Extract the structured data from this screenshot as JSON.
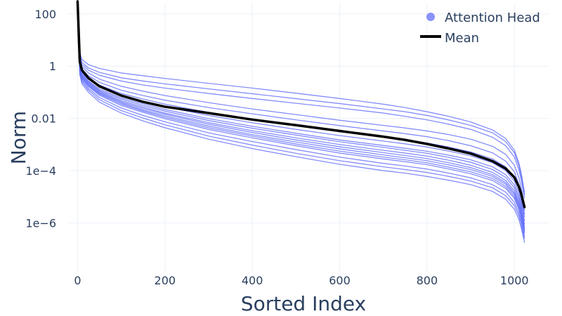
{
  "chart_data": {
    "type": "line",
    "title": "",
    "xlabel": "Sorted Index",
    "ylabel": "Norm",
    "xlim": [
      -20,
      1080
    ],
    "ylim_log10": [
      -7.9,
      2.4
    ],
    "y_scale": "log",
    "x_ticks": [
      {
        "value": 0,
        "label": "0"
      },
      {
        "value": 200,
        "label": "200"
      },
      {
        "value": 400,
        "label": "400"
      },
      {
        "value": 600,
        "label": "600"
      },
      {
        "value": 800,
        "label": "800"
      },
      {
        "value": 1000,
        "label": "1000"
      }
    ],
    "y_ticks": [
      {
        "value": 100,
        "label": "100"
      },
      {
        "value": 1,
        "label": "1"
      },
      {
        "value": 0.01,
        "label": "0.01"
      },
      {
        "value": 0.0001,
        "label": "1e−4"
      },
      {
        "value": 1e-06,
        "label": "1e−6"
      }
    ],
    "grid": true,
    "legend_position": "top-right",
    "legend": [
      {
        "name": "Attention Head",
        "symbol": "marker",
        "color": "#636efa"
      },
      {
        "name": "Mean",
        "symbol": "line",
        "color": "#000000"
      }
    ],
    "x": [
      0,
      5,
      10,
      25,
      50,
      100,
      150,
      200,
      300,
      400,
      500,
      600,
      700,
      750,
      800,
      850,
      900,
      950,
      980,
      1000,
      1010,
      1015,
      1020,
      1023
    ],
    "series": [
      {
        "name": "Mean",
        "color": "#000000",
        "values": [
          300,
          1.5,
          0.7,
          0.35,
          0.17,
          0.075,
          0.043,
          0.028,
          0.016,
          0.009,
          0.0055,
          0.0033,
          0.002,
          0.0015,
          0.00105,
          0.0007,
          0.00045,
          0.00023,
          0.00012,
          5.5e-05,
          2.5e-05,
          1.4e-05,
          6.5e-06,
          4e-06
        ]
      },
      {
        "name": "",
        "color": "#636efa",
        "values": [
          550,
          3.4,
          1.8,
          1.15,
          0.82,
          0.55,
          0.43,
          0.34,
          0.22,
          0.145,
          0.092,
          0.058,
          0.035,
          0.026,
          0.018,
          0.012,
          0.0073,
          0.0036,
          0.0017,
          0.0006,
          0.0002,
          9e-05,
          3e-05,
          1.5e-05
        ]
      },
      {
        "name": "",
        "color": "#636efa",
        "values": [
          400,
          2.6,
          1.4,
          0.85,
          0.58,
          0.36,
          0.27,
          0.21,
          0.135,
          0.088,
          0.057,
          0.037,
          0.023,
          0.018,
          0.013,
          0.0087,
          0.0054,
          0.0028,
          0.0013,
          0.00048,
          0.00016,
          7e-05,
          2.5e-05,
          1.2e-05
        ]
      },
      {
        "name": "",
        "color": "#636efa",
        "values": [
          350,
          2.2,
          1.15,
          0.7,
          0.45,
          0.27,
          0.19,
          0.145,
          0.09,
          0.058,
          0.038,
          0.025,
          0.016,
          0.012,
          0.0088,
          0.006,
          0.0038,
          0.0019,
          0.0009,
          0.00033,
          0.00011,
          5e-05,
          1.8e-05,
          9e-06
        ]
      },
      {
        "name": "",
        "color": "#636efa",
        "values": [
          280,
          1.8,
          0.95,
          0.55,
          0.32,
          0.17,
          0.11,
          0.075,
          0.04,
          0.023,
          0.014,
          0.0085,
          0.0054,
          0.0043,
          0.0033,
          0.0024,
          0.0016,
          0.00085,
          0.00042,
          0.00016,
          5.5e-05,
          2.5e-05,
          9e-06,
          5e-06
        ]
      },
      {
        "name": "",
        "color": "#636efa",
        "values": [
          240,
          1.5,
          0.78,
          0.43,
          0.24,
          0.12,
          0.075,
          0.05,
          0.026,
          0.015,
          0.0088,
          0.0053,
          0.0033,
          0.0026,
          0.002,
          0.0014,
          0.0009,
          0.00048,
          0.00023,
          9e-05,
          3e-05,
          1.4e-05,
          5.5e-06,
          3e-06
        ]
      },
      {
        "name": "",
        "color": "#636efa",
        "values": [
          210,
          1.3,
          0.66,
          0.36,
          0.19,
          0.09,
          0.055,
          0.035,
          0.017,
          0.0093,
          0.0053,
          0.0031,
          0.0019,
          0.0015,
          0.00115,
          0.0008,
          0.00052,
          0.00028,
          0.00014,
          5.5e-05,
          2e-05,
          1e-05,
          4e-06,
          2.2e-06
        ]
      },
      {
        "name": "",
        "color": "#636efa",
        "values": [
          190,
          1.15,
          0.58,
          0.31,
          0.16,
          0.075,
          0.045,
          0.028,
          0.013,
          0.0068,
          0.0038,
          0.0022,
          0.00135,
          0.00106,
          0.0008,
          0.00056,
          0.00037,
          0.0002,
          0.0001,
          4e-05,
          1.5e-05,
          7.5e-06,
          3e-06,
          1.7e-06
        ]
      },
      {
        "name": "",
        "color": "#636efa",
        "values": [
          170,
          1.05,
          0.52,
          0.27,
          0.135,
          0.062,
          0.036,
          0.022,
          0.0098,
          0.005,
          0.0027,
          0.0015,
          0.00092,
          0.00072,
          0.00055,
          0.00039,
          0.00026,
          0.00014,
          7e-05,
          2.8e-05,
          1.1e-05,
          5.5e-06,
          2.2e-06,
          1.2e-06
        ]
      },
      {
        "name": "",
        "color": "#636efa",
        "values": [
          160,
          0.98,
          0.48,
          0.25,
          0.12,
          0.055,
          0.031,
          0.019,
          0.0083,
          0.0042,
          0.0023,
          0.00128,
          0.00078,
          0.0006,
          0.00046,
          0.00032,
          0.00021,
          0.00011,
          5.5e-05,
          2.2e-05,
          8.5e-06,
          4.2e-06,
          1.7e-06,
          9e-07
        ]
      },
      {
        "name": "",
        "color": "#636efa",
        "values": [
          150,
          0.9,
          0.44,
          0.23,
          0.11,
          0.048,
          0.027,
          0.016,
          0.0069,
          0.0034,
          0.0018,
          0.001,
          0.0006,
          0.00047,
          0.00036,
          0.00025,
          0.00016,
          8.5e-05,
          4.2e-05,
          1.7e-05,
          6.5e-06,
          3.2e-06,
          1.3e-06,
          7e-07
        ]
      },
      {
        "name": "",
        "color": "#636efa",
        "values": [
          140,
          0.85,
          0.41,
          0.21,
          0.1,
          0.043,
          0.024,
          0.0145,
          0.006,
          0.0029,
          0.0015,
          0.00082,
          0.00049,
          0.00038,
          0.00029,
          0.0002,
          0.00013,
          7e-05,
          3.5e-05,
          1.4e-05,
          5.5e-06,
          2.7e-06,
          1.1e-06,
          6e-07
        ]
      },
      {
        "name": "",
        "color": "#636efa",
        "values": [
          130,
          0.8,
          0.38,
          0.195,
          0.092,
          0.039,
          0.021,
          0.0125,
          0.0051,
          0.0024,
          0.00125,
          0.00068,
          0.0004,
          0.00031,
          0.00024,
          0.000165,
          0.00011,
          6e-05,
          3e-05,
          1.2e-05,
          4.7e-06,
          2.3e-06,
          9e-07,
          5e-07
        ]
      },
      {
        "name": "",
        "color": "#636efa",
        "values": [
          120,
          0.75,
          0.35,
          0.18,
          0.085,
          0.035,
          0.019,
          0.011,
          0.0044,
          0.0021,
          0.00105,
          0.00056,
          0.00033,
          0.00026,
          0.0002,
          0.000135,
          9e-05,
          5e-05,
          2.5e-05,
          1e-05,
          4e-06,
          2e-06,
          8e-07,
          4.5e-07
        ]
      },
      {
        "name": "",
        "color": "#636efa",
        "values": [
          110,
          0.7,
          0.33,
          0.165,
          0.077,
          0.031,
          0.017,
          0.0097,
          0.0038,
          0.0018,
          0.0009,
          0.00047,
          0.00028,
          0.00022,
          0.00017,
          0.000115,
          7.6e-05,
          4.2e-05,
          2.1e-05,
          8.5e-06,
          3.4e-06,
          1.7e-06,
          7e-07,
          4e-07
        ]
      },
      {
        "name": "",
        "color": "#636efa",
        "values": [
          100,
          0.62,
          0.29,
          0.14,
          0.063,
          0.025,
          0.013,
          0.0074,
          0.0028,
          0.0013,
          0.00064,
          0.00033,
          0.00019,
          0.00015,
          0.000115,
          8e-05,
          5.3e-05,
          2.9e-05,
          1.5e-05,
          6e-06,
          2.5e-06,
          1.3e-06,
          5e-07,
          3e-07
        ]
      },
      {
        "name": "",
        "color": "#636efa",
        "values": [
          90,
          0.55,
          0.25,
          0.12,
          0.052,
          0.02,
          0.0103,
          0.0057,
          0.0021,
          0.00095,
          0.00046,
          0.00024,
          0.00014,
          0.00011,
          8.5e-05,
          6e-05,
          4e-05,
          2.2e-05,
          1.1e-05,
          4.5e-06,
          1.9e-06,
          1e-06,
          4e-07,
          2.5e-07
        ]
      },
      {
        "name": "",
        "color": "#636efa",
        "values": [
          80,
          0.48,
          0.21,
          0.1,
          0.042,
          0.016,
          0.008,
          0.0044,
          0.0016,
          0.0007,
          0.00034,
          0.000175,
          0.0001,
          8e-05,
          6e-05,
          4.3e-05,
          2.9e-05,
          1.6e-05,
          8e-06,
          3.3e-06,
          1.4e-06,
          7e-07,
          3e-07,
          1.8e-07
        ]
      }
    ]
  }
}
